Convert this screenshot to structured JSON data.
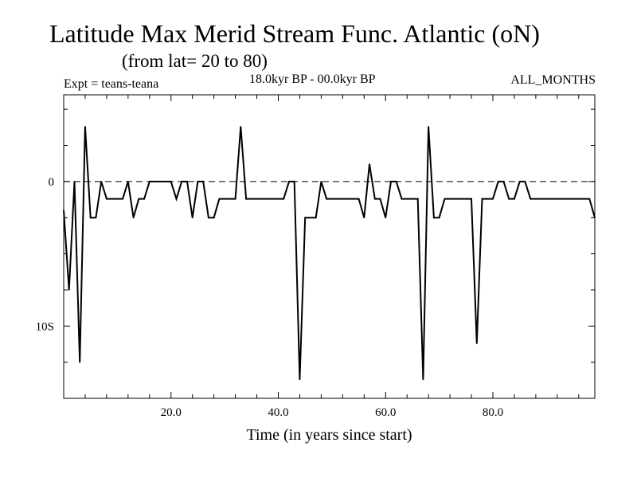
{
  "header": {
    "title": "Latitude Max Merid Stream Func. Atlantic (oN)",
    "subtitle": "(from lat= 20 to 80)",
    "experiment": "Expt = teans-teana",
    "period": "18.0kyr BP - 00.0kyr BP",
    "season": "ALL_MONTHS"
  },
  "chart_data": {
    "type": "line",
    "title": "Latitude Max Merid Stream Func. Atlantic (oN)",
    "subtitle": "(from lat= 20 to 80)",
    "xlabel": "Time (in years since start)",
    "ylabel": "",
    "xlim": [
      0,
      99
    ],
    "ylim": [
      -15,
      6
    ],
    "x_ticks": [
      {
        "value": 20,
        "label": "20.0"
      },
      {
        "value": 40,
        "label": "40.0"
      },
      {
        "value": 60,
        "label": "60.0"
      },
      {
        "value": 80,
        "label": "80.0"
      }
    ],
    "y_ticks": [
      {
        "value": 0,
        "label": "0"
      },
      {
        "value": -10,
        "label": "10S"
      }
    ],
    "reference_line": {
      "y": 0,
      "style": "dashed"
    },
    "grid": false,
    "series": [
      {
        "name": "teans-teana",
        "x": [
          0,
          1,
          2,
          3,
          4,
          5,
          6,
          7,
          8,
          9,
          10,
          11,
          12,
          13,
          14,
          15,
          16,
          17,
          18,
          19,
          20,
          21,
          22,
          23,
          24,
          25,
          26,
          27,
          28,
          29,
          30,
          31,
          32,
          33,
          34,
          35,
          36,
          37,
          38,
          39,
          40,
          41,
          42,
          43,
          44,
          45,
          46,
          47,
          48,
          49,
          50,
          51,
          52,
          53,
          54,
          55,
          56,
          57,
          58,
          59,
          60,
          61,
          62,
          63,
          64,
          65,
          66,
          67,
          68,
          69,
          70,
          71,
          72,
          73,
          74,
          75,
          76,
          77,
          78,
          79,
          80,
          81,
          82,
          83,
          84,
          85,
          86,
          87,
          88,
          89,
          90,
          91,
          92,
          93,
          94,
          95,
          96,
          97,
          98,
          99
        ],
        "y": [
          -2,
          -7.5,
          0,
          -12.5,
          3.8,
          -2.5,
          -2.5,
          0,
          -1.2,
          -1.2,
          -1.2,
          -1.2,
          0,
          -2.5,
          -1.2,
          -1.2,
          0,
          0,
          0,
          0,
          0,
          -1.2,
          0,
          0,
          -2.5,
          0,
          0,
          -2.5,
          -2.5,
          -1.2,
          -1.2,
          -1.2,
          -1.2,
          3.8,
          -1.2,
          -1.2,
          -1.2,
          -1.2,
          -1.2,
          -1.2,
          -1.2,
          -1.2,
          0,
          0,
          -13.7,
          -2.5,
          -2.5,
          -2.5,
          0,
          -1.2,
          -1.2,
          -1.2,
          -1.2,
          -1.2,
          -1.2,
          -1.2,
          -2.5,
          1.2,
          -1.2,
          -1.2,
          -2.5,
          0,
          0,
          -1.2,
          -1.2,
          -1.2,
          -1.2,
          -13.7,
          3.8,
          -2.5,
          -2.5,
          -1.2,
          -1.2,
          -1.2,
          -1.2,
          -1.2,
          -1.2,
          -11.2,
          -1.2,
          -1.2,
          -1.2,
          0,
          0,
          -1.2,
          -1.2,
          0,
          0,
          -1.2,
          -1.2,
          -1.2,
          -1.2,
          -1.2,
          -1.2,
          -1.2,
          -1.2,
          -1.2,
          -1.2,
          -1.2,
          -1.2,
          -2.5
        ]
      }
    ]
  }
}
